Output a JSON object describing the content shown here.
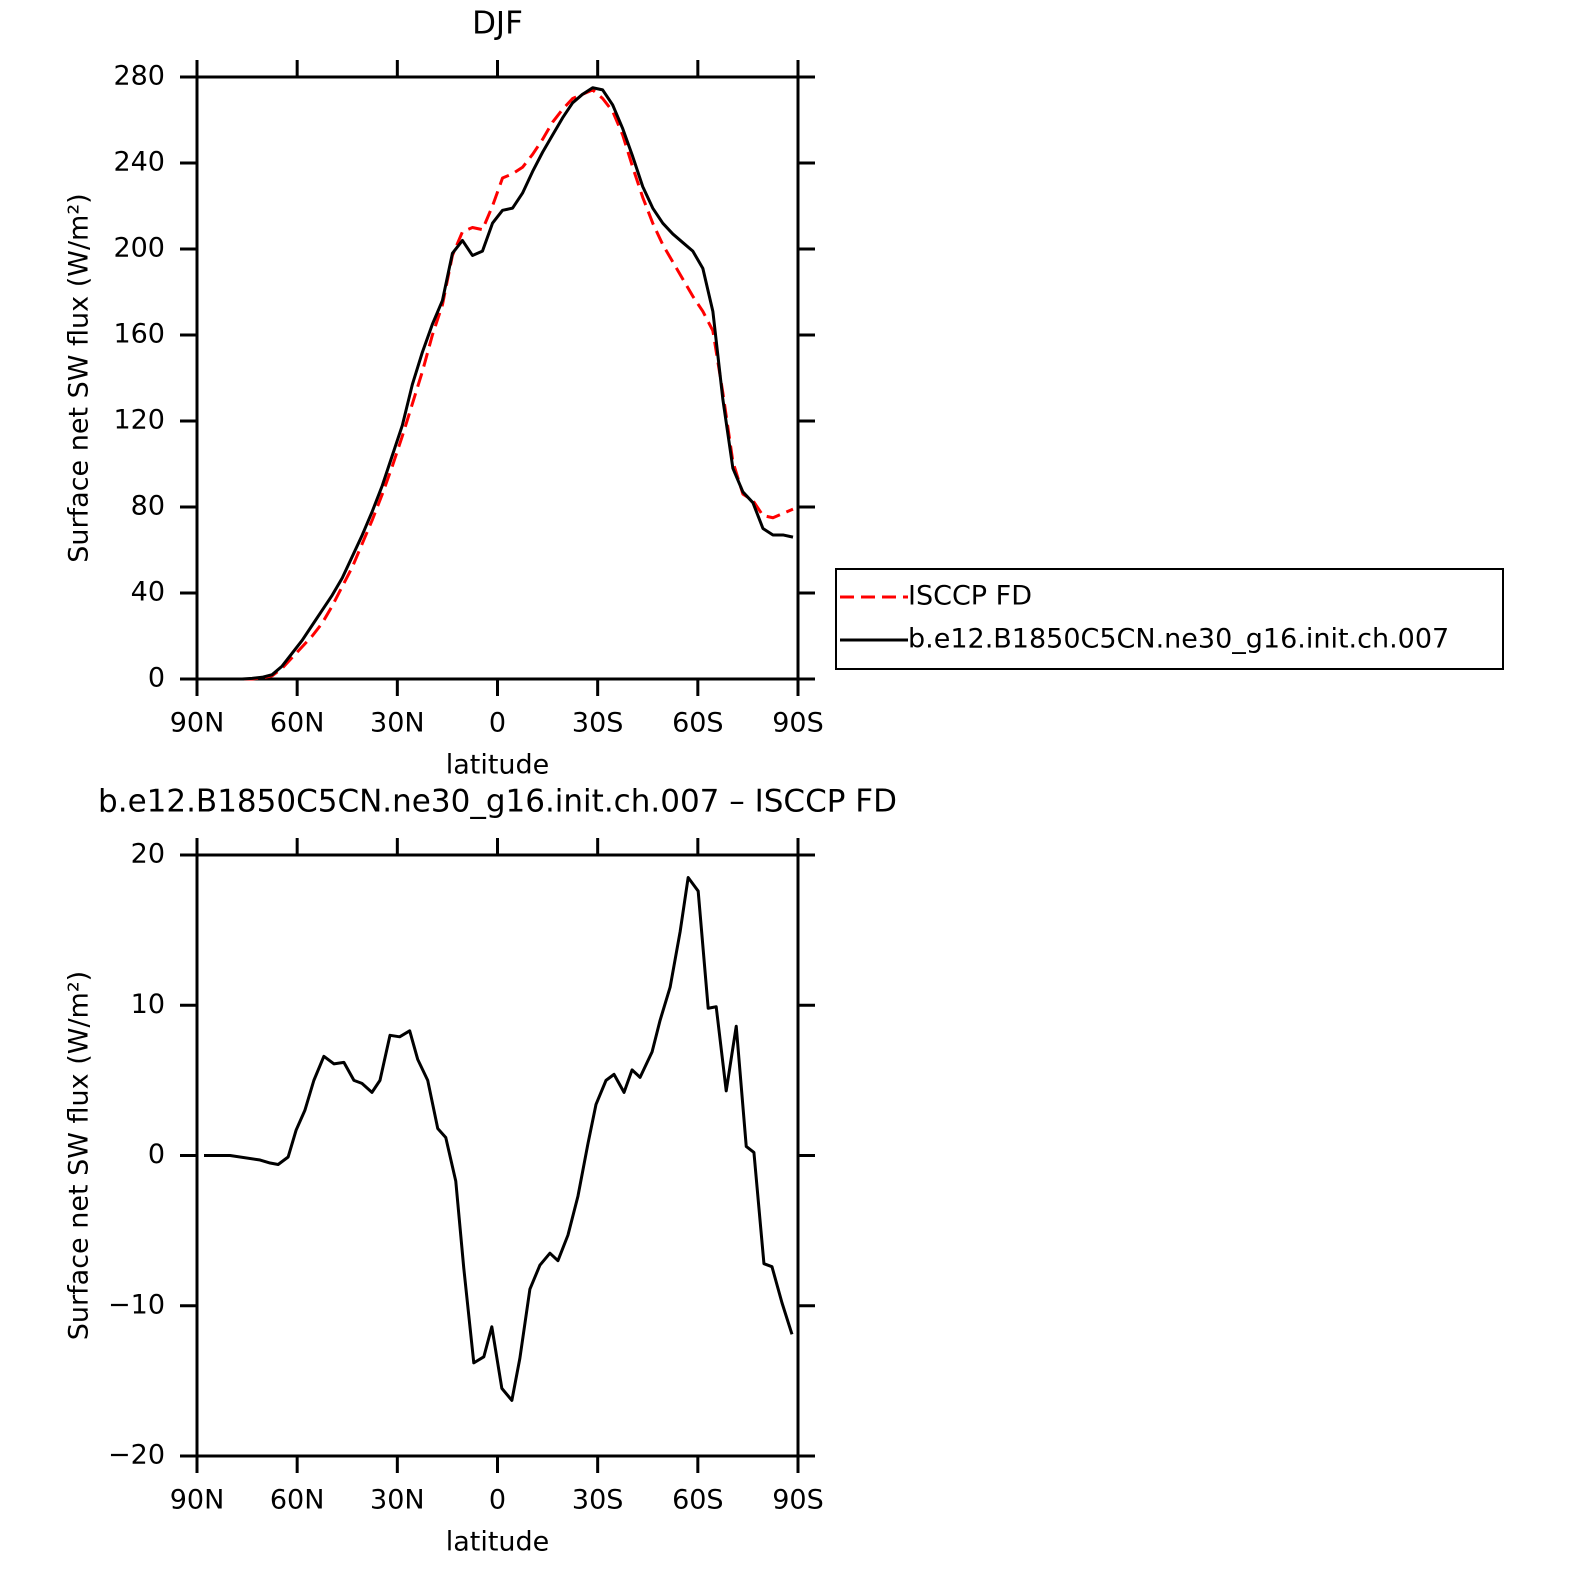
{
  "chart_data": [
    {
      "type": "line",
      "title": "DJF",
      "xlabel": "latitude",
      "ylabel": "Surface net SW flux (W/m²)",
      "legend": "right",
      "x": [
        88.5,
        85.5,
        82.5,
        79.5,
        76.5,
        73.5,
        70.5,
        67.5,
        64.5,
        61.5,
        58.5,
        55.5,
        52.5,
        49.5,
        46.5,
        43.5,
        40.5,
        37.5,
        34.5,
        31.5,
        28.5,
        25.5,
        22.5,
        19.5,
        16.5,
        13.5,
        10.5,
        7.5,
        4.5,
        1.5,
        -1.5,
        -4.5,
        -7.5,
        -10.5,
        -13.5,
        -16.5,
        -19.5,
        -22.5,
        -25.5,
        -28.5,
        -31.5,
        -34.5,
        -37.5,
        -40.5,
        -43.5,
        -46.5,
        -49.5,
        -52.5,
        -55.5,
        -58.5,
        -61.5,
        -64.5,
        -67.5,
        -70.5,
        -73.5,
        -76.5,
        -79.5,
        -82.5,
        -85.5,
        -88.5
      ],
      "xlim": [
        90,
        -90
      ],
      "xticks": [
        {
          "value": 90,
          "label": "90N"
        },
        {
          "value": 60,
          "label": "60N"
        },
        {
          "value": 30,
          "label": "30N"
        },
        0,
        {
          "value": -30,
          "label": "30S"
        },
        {
          "value": -60,
          "label": "60S"
        },
        {
          "value": -90,
          "label": "90S"
        }
      ],
      "ylim": [
        0,
        280
      ],
      "yticks": [
        0,
        40,
        80,
        120,
        160,
        200,
        240,
        280
      ],
      "series": [
        {
          "name": "ISCCP FD",
          "color": "#ff0000",
          "style": "dashed",
          "values": [
            0,
            0,
            0,
            0,
            0,
            0,
            0.5,
            1.5,
            5,
            10,
            15,
            20,
            26,
            34,
            43,
            52,
            63,
            74,
            86,
            99,
            113,
            128,
            143,
            160,
            174,
            197,
            208,
            210,
            209,
            220,
            233,
            235,
            238,
            244,
            251,
            259,
            265,
            270,
            272,
            274,
            270,
            264,
            253,
            238,
            224,
            212,
            202,
            194,
            186,
            178,
            171,
            162,
            133,
            101,
            86,
            83,
            76,
            75,
            77,
            79
          ]
        },
        {
          "name": "b.e12.B1850C5CN.ne30_g16.init.ch.007",
          "color": "#000000",
          "style": "solid",
          "values": [
            0,
            0,
            0,
            0,
            0,
            0.3,
            0.8,
            2,
            6,
            12,
            18,
            25,
            32,
            39,
            47,
            57,
            67,
            78,
            90,
            104,
            118,
            137,
            152,
            165,
            176,
            198,
            204,
            197,
            199,
            212,
            218,
            219,
            226,
            236,
            245,
            253,
            261,
            268,
            272,
            275,
            274,
            267,
            256,
            243,
            229,
            219,
            212,
            207,
            203,
            199,
            191,
            171,
            130,
            98,
            87,
            82,
            70,
            67,
            67,
            66
          ]
        }
      ]
    },
    {
      "type": "line",
      "title": "b.e12.B1850C5CN.ne30_g16.init.ch.007 – ISCCP FD",
      "xlabel": "latitude",
      "ylabel": "Surface net SW flux (W/m²)",
      "x": [
        87.9,
        80.1,
        71.1,
        68.1,
        65.7,
        62.7,
        60.3,
        57.7,
        55.0,
        52.0,
        49.0,
        46.0,
        43.0,
        40.6,
        37.6,
        35.2,
        32.2,
        29.3,
        26.3,
        23.9,
        20.9,
        17.9,
        15.5,
        12.5,
        10.1,
        7.1,
        4.1,
        1.7,
        -1.3,
        -4.3,
        -6.7,
        -9.7,
        -12.7,
        -15.7,
        -18.1,
        -21.1,
        -24.1,
        -27.1,
        -29.5,
        -32.5,
        -34.9,
        -37.9,
        -40.3,
        -42.7,
        -46.3,
        -48.7,
        -51.7,
        -54.7,
        -57.1,
        -60.1,
        -63.1,
        -65.5,
        -68.5,
        -71.5,
        -74.5,
        -76.8,
        -79.8,
        -82.2,
        -85.2,
        -88.2
      ],
      "xlim": [
        90,
        -90
      ],
      "xticks": [
        {
          "value": 90,
          "label": "90N"
        },
        {
          "value": 60,
          "label": "60N"
        },
        {
          "value": 30,
          "label": "30N"
        },
        0,
        {
          "value": -30,
          "label": "30S"
        },
        {
          "value": -60,
          "label": "60S"
        },
        {
          "value": -90,
          "label": "90S"
        }
      ],
      "ylim": [
        -20,
        20
      ],
      "yticks": [
        {
          "value": -20,
          "label": "−20"
        },
        {
          "value": -10,
          "label": "−10"
        },
        0,
        10,
        20
      ],
      "series": [
        {
          "color": "#000000",
          "style": "solid",
          "values": [
            0,
            0,
            -0.3,
            -0.5,
            -0.6,
            -0.1,
            1.7,
            3,
            5,
            6.6,
            6.1,
            6.2,
            5,
            4.8,
            4.2,
            5,
            8,
            7.9,
            8.3,
            6.4,
            5,
            1.8,
            1.2,
            -1.7,
            -7.5,
            -13.8,
            -13.4,
            -11.4,
            -15.5,
            -16.3,
            -13.5,
            -8.9,
            -7.3,
            -6.5,
            -7,
            -5.3,
            -2.7,
            0.8,
            3.4,
            5,
            5.4,
            4.2,
            5.7,
            5.2,
            6.9,
            9,
            11.2,
            14.9,
            18.5,
            17.6,
            9.8,
            9.9,
            4.3,
            8.6,
            0.6,
            0.2,
            -7.2,
            -7.4,
            -9.8,
            -11.9
          ]
        }
      ]
    }
  ]
}
